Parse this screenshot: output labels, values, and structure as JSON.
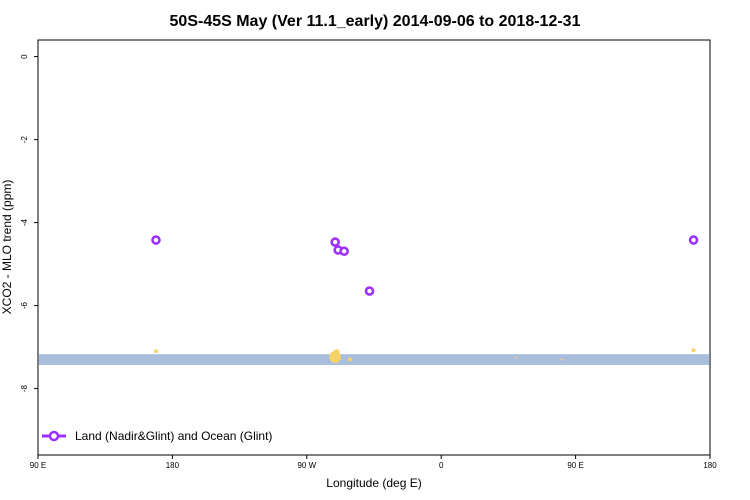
{
  "chart_data": {
    "type": "scatter",
    "title": "50S-45S May (Ver 11.1_early)   2014-09-06 to 2018-12-31",
    "xlabel": "Longitude (deg E)",
    "ylabel": "XCO2 - MLO trend (ppm)",
    "x_ticks": [
      {
        "value": 90,
        "label": "90 E"
      },
      {
        "value": 180,
        "label": "180"
      },
      {
        "value": 270,
        "label": "90 W"
      },
      {
        "value": 360,
        "label": "0"
      },
      {
        "value": 450,
        "label": "90 E"
      },
      {
        "value": 540,
        "label": "180"
      }
    ],
    "y_ticks": [
      {
        "value": 0,
        "label": "0"
      },
      {
        "value": -2,
        "label": "-2"
      },
      {
        "value": -4,
        "label": "-4"
      },
      {
        "value": -6,
        "label": "-6"
      },
      {
        "value": -8,
        "label": "-8"
      }
    ],
    "xlim": [
      90,
      540
    ],
    "ylim": [
      -9.6,
      0.4
    ],
    "grid": false,
    "legend_position": "bottom-left",
    "band": {
      "y_min": -7.43,
      "y_max": -7.17,
      "color": "#a8bedc"
    },
    "series": [
      {
        "name": "Land (Nadir&Glint) and Ocean (Glint)",
        "color": "#9b30ff",
        "marker": "open-circle",
        "points": [
          {
            "x": 169,
            "y": -4.42
          },
          {
            "x": 289,
            "y": -4.47
          },
          {
            "x": 291,
            "y": -4.66
          },
          {
            "x": 295,
            "y": -4.69
          },
          {
            "x": 312,
            "y": -5.65
          },
          {
            "x": 529,
            "y": -4.42
          }
        ]
      },
      {
        "color": "#f6d26b",
        "marker": "filled-circle",
        "points": [
          {
            "x": 169,
            "y": -7.1,
            "size": 2
          },
          {
            "x": 289,
            "y": -7.24,
            "size": 6
          },
          {
            "x": 290,
            "y": -7.12,
            "size": 3
          },
          {
            "x": 299,
            "y": -7.3,
            "size": 2
          },
          {
            "x": 410,
            "y": -7.25,
            "size": 1
          },
          {
            "x": 441,
            "y": -7.3,
            "size": 1
          },
          {
            "x": 529,
            "y": -7.08,
            "size": 2
          }
        ]
      }
    ]
  }
}
